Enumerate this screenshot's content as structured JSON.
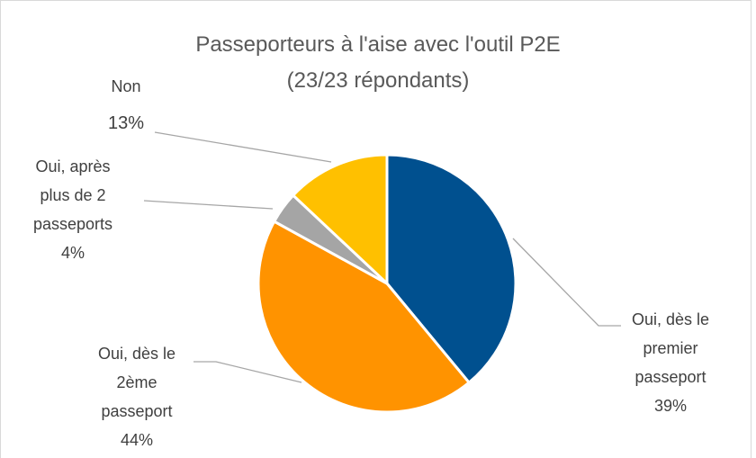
{
  "chart_data": {
    "type": "pie",
    "title": "Passeporteurs à l'aise avec l'outil P2E",
    "subtitle": "(23/23 répondants)",
    "categories": [
      "Oui, dès le premier passeport",
      "Oui, dès le 2ème passeport",
      "Oui, après plus de 2 passeports",
      "Non"
    ],
    "values": [
      39,
      44,
      4,
      13
    ],
    "value_labels": [
      "39%",
      "44%",
      "4%",
      "13%"
    ],
    "colors": [
      "#00508f",
      "#ff9300",
      "#a5a5a5",
      "#ffc000"
    ]
  }
}
